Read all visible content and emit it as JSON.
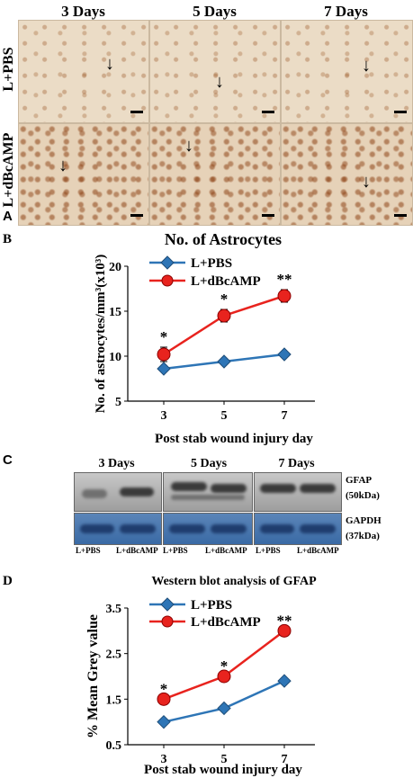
{
  "panelA": {
    "letter": "A",
    "col_headers": [
      "3 Days",
      "5 Days",
      "7 Days"
    ],
    "row_labels": [
      "L+PBS",
      "L+dBcAMP"
    ]
  },
  "panelC": {
    "letter": "C",
    "col_headers": [
      "3 Days",
      "5 Days",
      "7 Days"
    ],
    "bands": [
      "GFAP",
      "(50kDa)",
      "GAPDH",
      "(37kDa)"
    ],
    "lane_labels": [
      "L+PBS",
      "L+dBcAMP"
    ]
  },
  "chart_data": [
    {
      "panel_letter": "B",
      "type": "line",
      "title": "No. of Astrocytes",
      "xlabel": "Post stab wound injury day",
      "ylabel": "No. of astrocytes/mm³(x10³)",
      "categories": [
        "3",
        "5",
        "7"
      ],
      "ylim": [
        5,
        20
      ],
      "yticks": [
        "5",
        "10",
        "15",
        "20"
      ],
      "legend_position": "top-left",
      "series": [
        {
          "name": "L+PBS",
          "values": [
            8.6,
            9.4,
            10.2
          ],
          "color": "#2e75b6",
          "marker": "diamond"
        },
        {
          "name": "L+dBcAMP",
          "values": [
            10.2,
            14.5,
            16.7
          ],
          "color": "#e8231e",
          "marker": "circle",
          "errors": [
            0.8,
            0.7,
            0.7
          ]
        }
      ],
      "significance": [
        "*",
        "*",
        "**"
      ]
    },
    {
      "panel_letter": "D",
      "type": "line",
      "title": "Western blot analysis of GFAP",
      "xlabel": "Post stab wound injury day",
      "ylabel": "% Mean Grey value",
      "categories": [
        "3",
        "5",
        "7"
      ],
      "ylim": [
        0.5,
        3.5
      ],
      "yticks": [
        "0.5",
        "1.5",
        "2.5",
        "3.5"
      ],
      "legend_position": "top-left",
      "series": [
        {
          "name": "L+PBS",
          "values": [
            1.0,
            1.3,
            1.9
          ],
          "color": "#2e75b6",
          "marker": "diamond"
        },
        {
          "name": "L+dBcAMP",
          "values": [
            1.5,
            2.0,
            3.0
          ],
          "color": "#e8231e",
          "marker": "circle"
        }
      ],
      "significance": [
        "*",
        "*",
        "**"
      ]
    }
  ]
}
